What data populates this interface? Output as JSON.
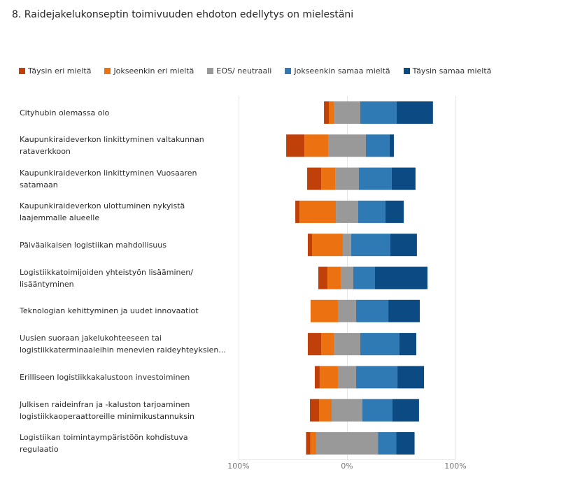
{
  "title": "8.  Raidejakelukonseptin toimivuuden ehdoton edellytys on mielestäni",
  "chart_data": {
    "type": "bar",
    "orientation": "horizontal",
    "stacked": "diverging",
    "title": "8.  Raidejakelukonseptin toimivuuden ehdoton edellytys on mielestäni",
    "xlabel": "",
    "ylabel": "",
    "xlim": [
      -100,
      100
    ],
    "x_ticks": [
      "100%",
      "0%",
      "100%"
    ],
    "grid": true,
    "legend_position": "top-left",
    "categories": [
      "Cityhubin olemassa olo",
      "Kaupunkiraideverkon linkittyminen valtakunnan rataverkkoon",
      "Kaupunkiraideverkon linkittyminen Vuosaaren satamaan",
      "Kaupunkiraideverkon ulottuminen nykyistä laajemmalle alueelle",
      "Päiväaikaisen logistiikan mahdollisuus",
      "Logistiikkatoimijoiden yhteistyön lisääminen/ lisääntyminen",
      "Teknologian kehittyminen ja uudet innovaatiot",
      "Uusien suoraan jakelukohteeseen tai logistiikkaterminaaleihin menevien raideyhteyksien...",
      "Erilliseen logistiikkakalustoon investoiminen",
      "Julkisen raideinfran ja -kaluston tarjoaminen logistiikkaoperaattoreille minimikustannuksin",
      "Logistiikan toimintaympäristöön kohdistuva regulaatio"
    ],
    "series": [
      {
        "name": "Täysin eri mieltä",
        "color": "#c0400a",
        "values": [
          4.5,
          16.8,
          12.9,
          3.9,
          3.9,
          8.4,
          0,
          12.3,
          4.5,
          8.4,
          3.9
        ]
      },
      {
        "name": "Jokseenkin eri mieltä",
        "color": "#ec7110",
        "values": [
          4.5,
          21.9,
          12.9,
          33.5,
          28.4,
          12.3,
          25.2,
          11.6,
          16.8,
          11.6,
          5.2
        ]
      },
      {
        "name": "EOS/ neutraali",
        "color": "#999999",
        "values": [
          24.5,
          34.8,
          21.9,
          20.6,
          7.7,
          11.6,
          16.8,
          24.5,
          16.8,
          28.4,
          57.4
        ]
      },
      {
        "name": "Jokseenkin samaa mieltä",
        "color": "#2f7ab4",
        "values": [
          33.5,
          21.9,
          30.3,
          25.2,
          36.1,
          20.0,
          29.7,
          36.1,
          38.1,
          27.7,
          16.8
        ]
      },
      {
        "name": "Täysin samaa mieltä",
        "color": "#0b4a82",
        "values": [
          33.5,
          3.9,
          21.9,
          16.8,
          24.5,
          48.4,
          29.0,
          15.5,
          24.5,
          24.5,
          16.8
        ]
      }
    ],
    "category_label_lines": [
      [
        "Cityhubin olemassa olo"
      ],
      [
        "Kaupunkiraideverkon linkittyminen valtakunnan",
        "rataverkkoon"
      ],
      [
        "Kaupunkiraideverkon linkittyminen Vuosaaren",
        "satamaan"
      ],
      [
        "Kaupunkiraideverkon ulottuminen nykyistä",
        "laajemmalle alueelle"
      ],
      [
        "Päiväaikaisen logistiikan mahdollisuus"
      ],
      [
        "Logistiikkatoimijoiden yhteistyön lisääminen/",
        "lisääntyminen"
      ],
      [
        "Teknologian kehittyminen ja uudet innovaatiot"
      ],
      [
        "Uusien suoraan jakelukohteeseen tai",
        "logistiikkaterminaaleihin menevien raideyhteyksien..."
      ],
      [
        "Erilliseen logistiikkakalustoon investoiminen"
      ],
      [
        "Julkisen raideinfran ja -kaluston tarjoaminen",
        "logistiikkaoperaattoreille minimikustannuksin"
      ],
      [
        "Logistiikan toimintaympäristöön kohdistuva",
        "regulaatio"
      ]
    ]
  }
}
